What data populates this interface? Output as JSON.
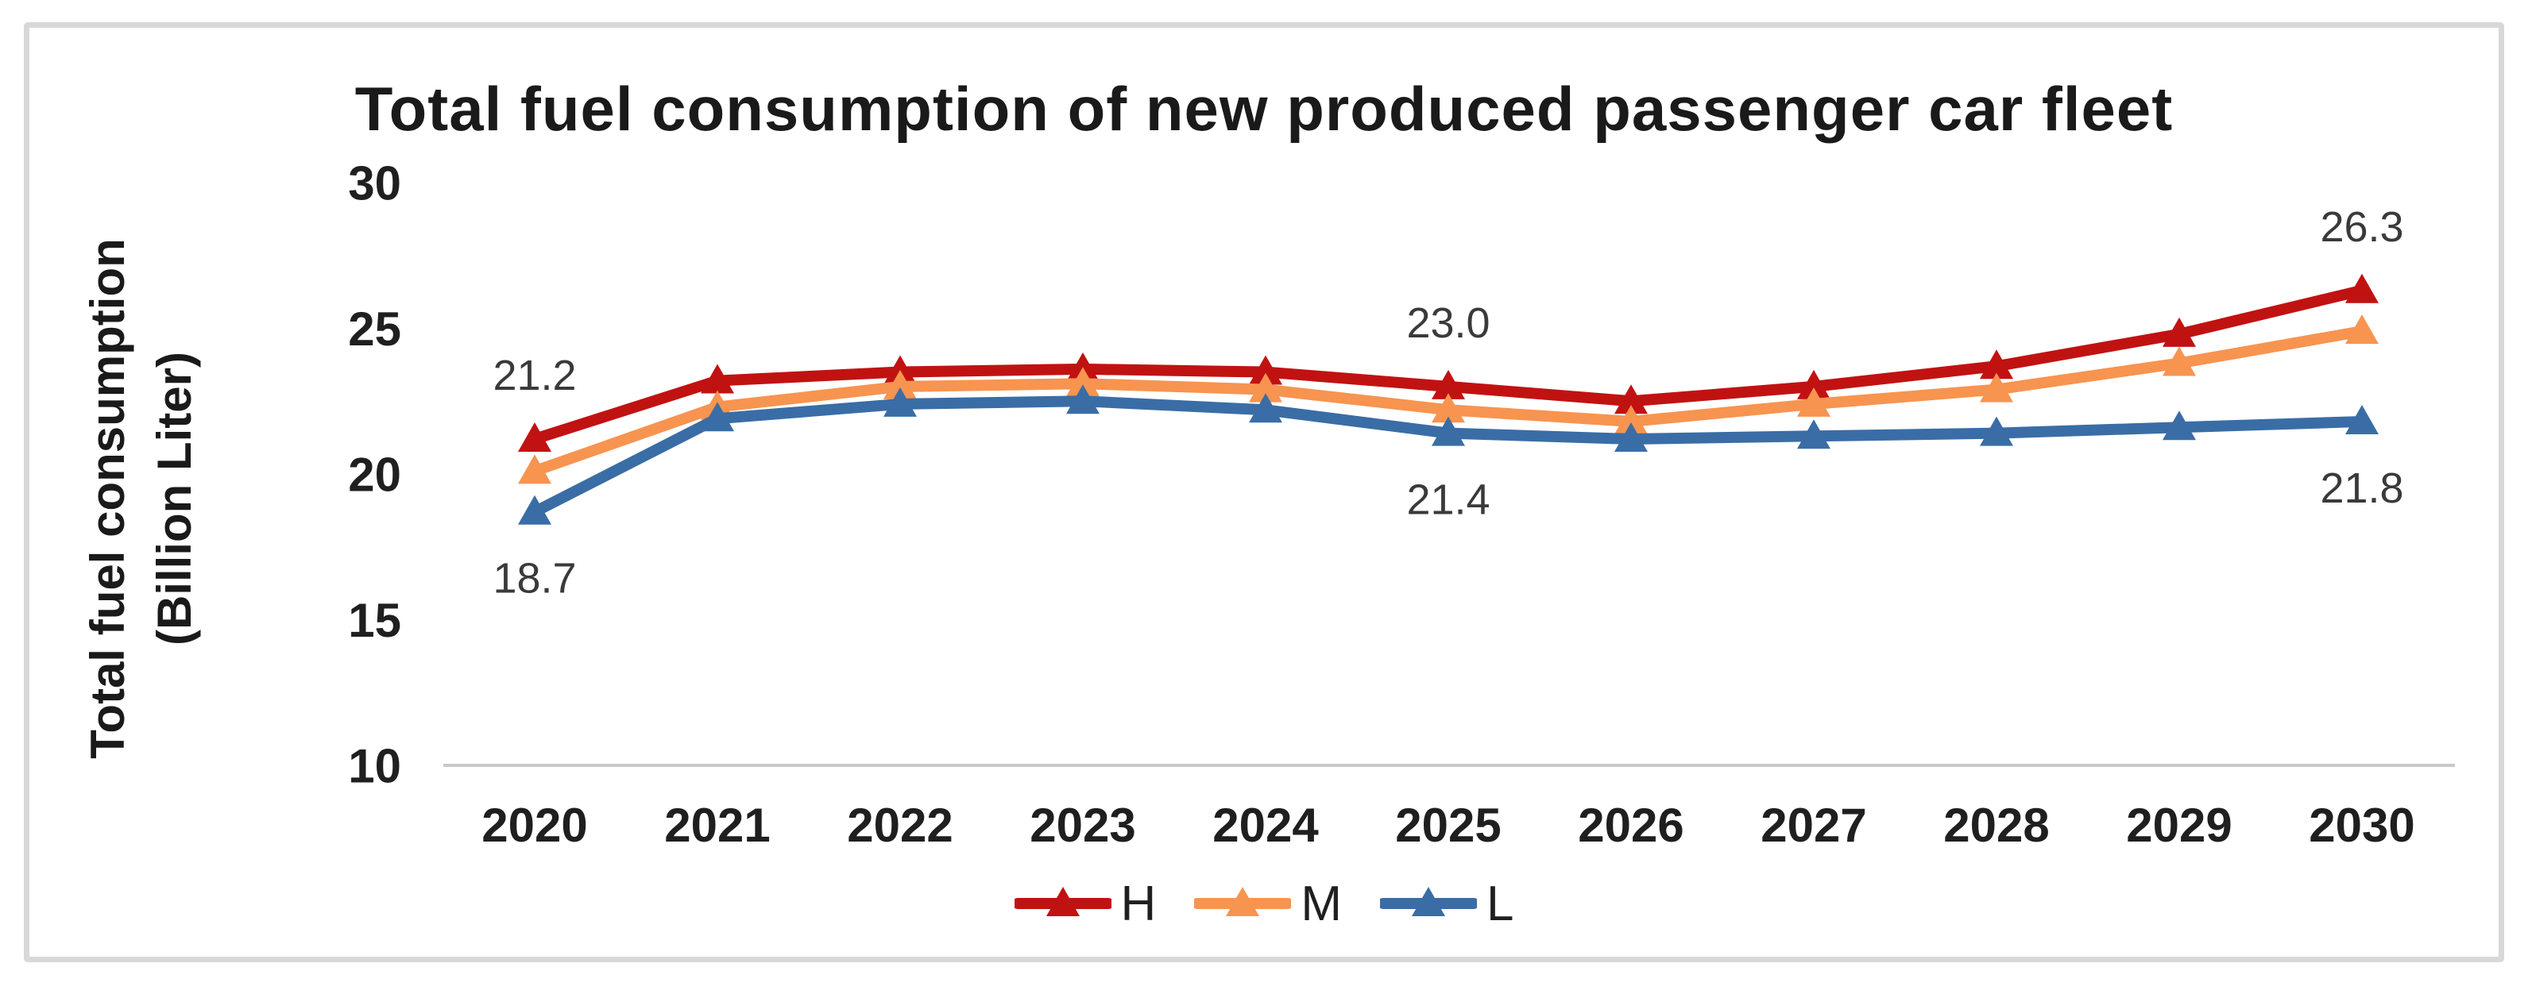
{
  "chart_data": {
    "type": "line",
    "title": "Total fuel consumption of new produced passenger car fleet",
    "ylabel_line1": "Total fuel consumption",
    "ylabel_line2": "(Billion Liter)",
    "x": [
      "2020",
      "2021",
      "2022",
      "2023",
      "2024",
      "2025",
      "2026",
      "2027",
      "2028",
      "2029",
      "2030"
    ],
    "series": [
      {
        "name": "H",
        "color": "#C11212",
        "values": [
          21.2,
          23.2,
          23.5,
          23.6,
          23.5,
          23.0,
          22.5,
          23.0,
          23.7,
          24.8,
          26.3
        ]
      },
      {
        "name": "M",
        "color": "#F79450",
        "values": [
          20.1,
          22.3,
          23.0,
          23.1,
          22.9,
          22.2,
          21.8,
          22.4,
          22.9,
          23.8,
          24.9
        ]
      },
      {
        "name": "L",
        "color": "#3A6DA5",
        "values": [
          18.7,
          21.9,
          22.4,
          22.5,
          22.2,
          21.4,
          21.2,
          21.3,
          21.4,
          21.6,
          21.8
        ]
      }
    ],
    "ylim": [
      10,
      30
    ],
    "yticks": [
      10,
      15,
      20,
      25,
      30
    ],
    "grid": false,
    "legend_position": "bottom",
    "marker": "triangle-up",
    "point_labels": [
      {
        "series": "H",
        "x": "2020",
        "text": "21.2",
        "placement": "above"
      },
      {
        "series": "L",
        "x": "2020",
        "text": "18.7",
        "placement": "below"
      },
      {
        "series": "H",
        "x": "2025",
        "text": "23.0",
        "placement": "above"
      },
      {
        "series": "L",
        "x": "2025",
        "text": "21.4",
        "placement": "below"
      },
      {
        "series": "H",
        "x": "2030",
        "text": "26.3",
        "placement": "above"
      },
      {
        "series": "L",
        "x": "2030",
        "text": "21.8",
        "placement": "below"
      }
    ],
    "axis_color": "#C8C8C8"
  }
}
